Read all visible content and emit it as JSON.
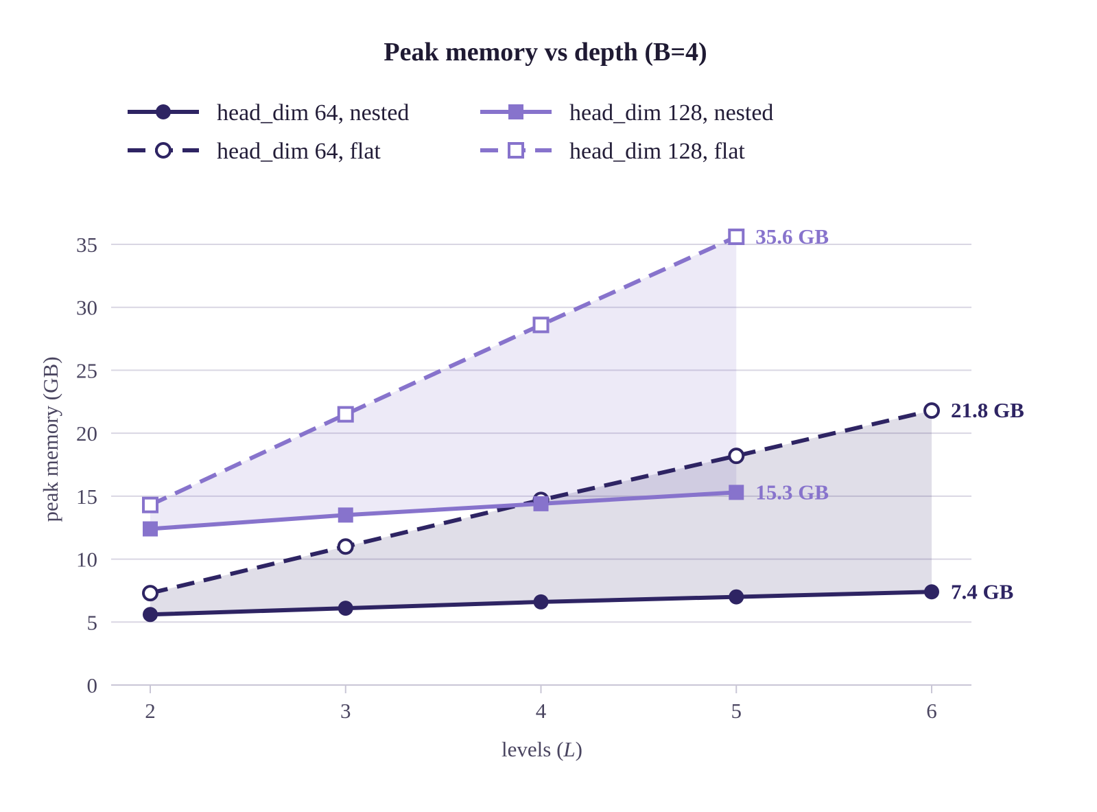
{
  "chart_data": {
    "type": "line",
    "title": "Peak memory vs depth  (B=4)",
    "xlabel_prefix": "levels (",
    "xlabel_var": "L",
    "xlabel_suffix": ")",
    "ylabel": "peak memory (GB)",
    "x_ticks": [
      "2",
      "3",
      "4",
      "5",
      "6"
    ],
    "y_ticks": [
      "0",
      "5",
      "10",
      "15",
      "20",
      "25",
      "30",
      "35"
    ],
    "xlim": [
      1.8,
      6.2
    ],
    "ylim": [
      0,
      37
    ],
    "grid": "y",
    "legend_position": "top",
    "series": [
      {
        "name": "head_dim 64, nested",
        "x": [
          2,
          3,
          4,
          5,
          6
        ],
        "values": [
          5.6,
          6.1,
          6.6,
          7.0,
          7.4
        ],
        "color": "#2e2463",
        "dashed": false,
        "marker": "circle",
        "filled": true,
        "end_label": "7.4 GB"
      },
      {
        "name": "head_dim 64, flat",
        "x": [
          2,
          3,
          4,
          5,
          6
        ],
        "values": [
          7.3,
          11.0,
          14.7,
          18.2,
          21.8
        ],
        "color": "#2e2463",
        "dashed": true,
        "marker": "circle",
        "filled": false,
        "end_label": "21.8 GB"
      },
      {
        "name": "head_dim 128, nested",
        "x": [
          2,
          3,
          4,
          5
        ],
        "values": [
          12.4,
          13.5,
          14.4,
          15.3
        ],
        "color": "#8773cc",
        "dashed": false,
        "marker": "square",
        "filled": true,
        "end_label": "15.3 GB"
      },
      {
        "name": "head_dim 128, flat",
        "x": [
          2,
          3,
          4,
          5
        ],
        "values": [
          14.3,
          21.5,
          28.6,
          35.6
        ],
        "color": "#8773cc",
        "dashed": true,
        "marker": "square",
        "filled": false,
        "end_label": "35.6 GB"
      }
    ],
    "shaded_regions": [
      {
        "between": [
          "head_dim 128, nested",
          "head_dim 128, flat"
        ],
        "color": "#8773cc"
      },
      {
        "between": [
          "head_dim 64, nested",
          "head_dim 64, flat"
        ],
        "color": "#2e2463"
      }
    ]
  }
}
